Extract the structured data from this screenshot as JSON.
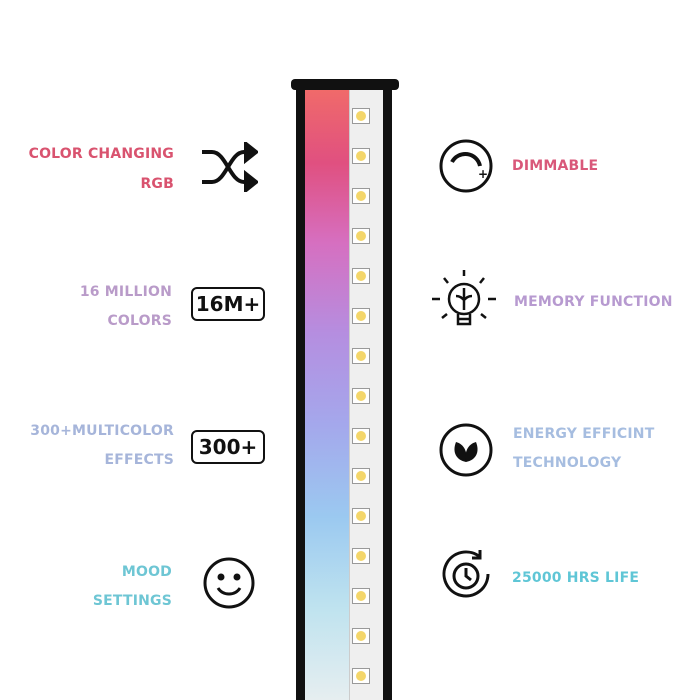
{
  "left_features": [
    {
      "lines": [
        "COLOR CHANGING",
        "RGB"
      ],
      "color": "#d9536f",
      "icon": "shuffle-icon"
    },
    {
      "lines": [
        "16 MILLION",
        "COLORS"
      ],
      "color": "#b99bc9",
      "badge": "16M+"
    },
    {
      "lines": [
        "300+MULTICOLOR",
        "EFFECTS"
      ],
      "color": "#a6b5da",
      "badge": "300+"
    },
    {
      "lines": [
        "MOOD",
        "SETTINGS"
      ],
      "color": "#6ec6d4",
      "icon": "smiley-icon"
    }
  ],
  "right_features": [
    {
      "lines": [
        "DIMMABLE"
      ],
      "color": "#d9587a",
      "icon": "dimmer-icon"
    },
    {
      "lines": [
        "MEMORY FUNCTION"
      ],
      "color": "#b79ad0",
      "icon": "brain-bulb-icon"
    },
    {
      "lines": [
        "ENERGY EFFICINT",
        "TECHNOLOGY"
      ],
      "color": "#a6bde0",
      "icon": "leaf-icon"
    },
    {
      "lines": [
        "25000 HRS LIFE"
      ],
      "color": "#5fc6d6",
      "icon": "clock-icon"
    }
  ]
}
